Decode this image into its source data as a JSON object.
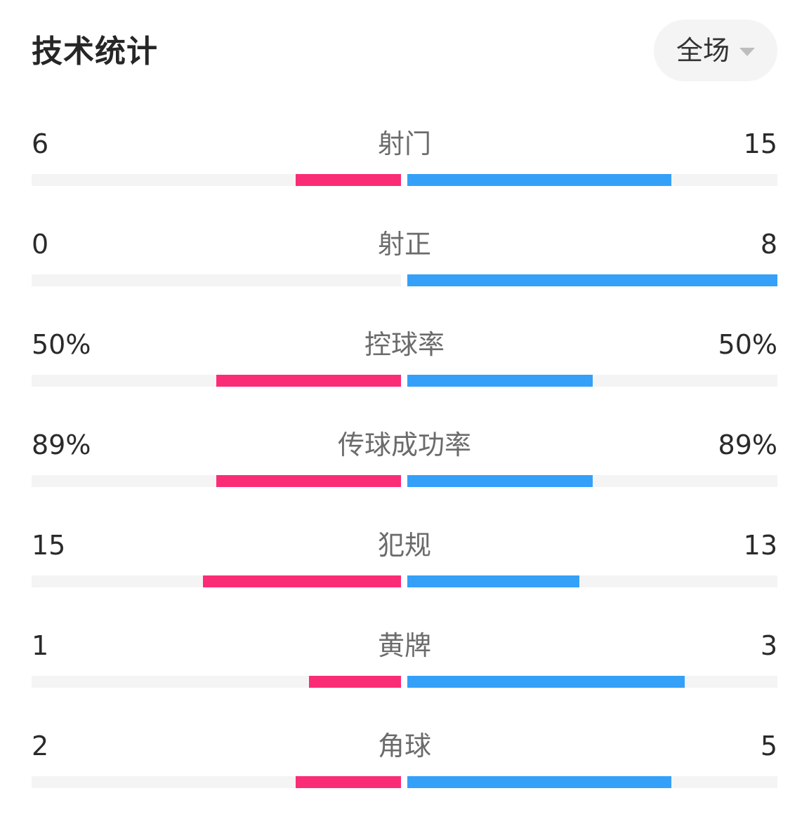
{
  "header": {
    "title": "技术统计",
    "period": "全场"
  },
  "colors": {
    "home": "#fb2c76",
    "away": "#34a0f8",
    "track": "#f4f4f4"
  },
  "stats": [
    {
      "name": "射门",
      "home": "6",
      "away": "15",
      "home_fill": 0.286,
      "away_fill": 0.714
    },
    {
      "name": "射正",
      "home": "0",
      "away": "8",
      "home_fill": 0.0,
      "away_fill": 1.0
    },
    {
      "name": "控球率",
      "home": "50%",
      "away": "50%",
      "home_fill": 0.5,
      "away_fill": 0.5
    },
    {
      "name": "传球成功率",
      "home": "89%",
      "away": "89%",
      "home_fill": 0.5,
      "away_fill": 0.5
    },
    {
      "name": "犯规",
      "home": "15",
      "away": "13",
      "home_fill": 0.536,
      "away_fill": 0.464
    },
    {
      "name": "黄牌",
      "home": "1",
      "away": "3",
      "home_fill": 0.25,
      "away_fill": 0.75
    },
    {
      "name": "角球",
      "home": "2",
      "away": "5",
      "home_fill": 0.286,
      "away_fill": 0.714
    }
  ]
}
